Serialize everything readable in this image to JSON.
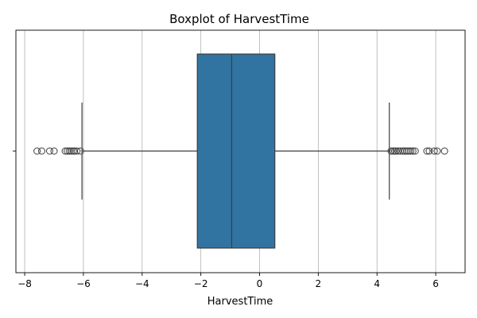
{
  "chart_data": {
    "type": "boxplot",
    "orientation": "horizontal",
    "title": "Boxplot of HarvestTime",
    "xlabel": "HarvestTime",
    "ylabel": "",
    "xlim": [
      -8.3,
      7.0
    ],
    "xticks": [
      -8,
      -6,
      -4,
      -2,
      0,
      2,
      4,
      6
    ],
    "xtick_labels": [
      "−8",
      "−6",
      "−4",
      "−2",
      "0",
      "2",
      "4",
      "6"
    ],
    "grid": true,
    "box": {
      "whisker_low": -6.05,
      "q1": -2.12,
      "median": -0.95,
      "q3": 0.52,
      "whisker_high": 4.42
    },
    "outliers": [
      -7.58,
      -7.42,
      -7.15,
      -7.0,
      -6.62,
      -6.55,
      -6.48,
      -6.42,
      -6.35,
      -6.3,
      -6.22,
      -6.1,
      4.48,
      4.55,
      4.6,
      4.65,
      4.72,
      4.8,
      4.88,
      4.95,
      5.02,
      5.08,
      5.15,
      5.22,
      5.3,
      5.7,
      5.78,
      5.95,
      6.05,
      6.3
    ],
    "colors": {
      "box_fill": "#3274a1",
      "line": "#3d3d3d",
      "grid": "#b0b0b0"
    }
  }
}
